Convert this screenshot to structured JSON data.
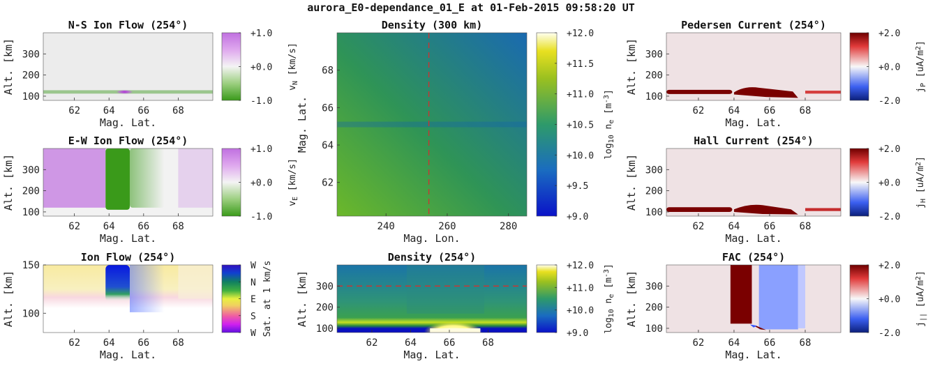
{
  "main_title": "aurora_E0-dependance_01_E at 01-Feb-2015 09:58:20 UT",
  "colors": {
    "green": "#3a9a1a",
    "magenta": "#c070e0",
    "dark_red": "#7a0000",
    "blue": "#1040ff",
    "density_green": "#3a9a4a",
    "density_blue": "#1060b0",
    "dashed_line": "#d23030"
  },
  "chart_data": [
    {
      "id": "ns_ion_flow",
      "type": "heatmap",
      "title": "N-S Ion Flow (254°)",
      "xlabel": "Mag. Lat.",
      "ylabel": "Alt. [km]",
      "xlim": [
        60.2,
        70.0
      ],
      "ylim": [
        80,
        400
      ],
      "xticks": [
        62,
        64,
        66,
        68
      ],
      "xtick_labels": [
        "62",
        "64",
        "66",
        "68"
      ],
      "yticks": [
        100,
        200,
        300
      ],
      "ytick_labels": [
        "100",
        "200",
        "300"
      ],
      "colorbar": {
        "label": "v",
        "sub": "N",
        "unit": " [km/s]",
        "ticks": [
          "+1.0",
          "+0.0",
          "-1.0"
        ],
        "colormap": "green-white-magenta"
      },
      "features": [
        {
          "kind": "band",
          "x": [
            60.2,
            70.0
          ],
          "y": [
            112,
            128
          ],
          "color": "green",
          "opacity": 0.45
        },
        {
          "kind": "blob",
          "x": 64.9,
          "y": 120,
          "rx": 0.5,
          "ry": 10,
          "color": "magenta"
        }
      ]
    },
    {
      "id": "ew_ion_flow",
      "type": "heatmap",
      "title": "E-W Ion Flow (254°)",
      "xlabel": "Mag. Lat.",
      "ylabel": "Alt. [km]",
      "xlim": [
        60.2,
        70.0
      ],
      "ylim": [
        80,
        400
      ],
      "xticks": [
        62,
        64,
        66,
        68
      ],
      "xtick_labels": [
        "62",
        "64",
        "66",
        "68"
      ],
      "yticks": [
        100,
        200,
        300
      ],
      "ytick_labels": [
        "100",
        "200",
        "300"
      ],
      "colorbar": {
        "label": "v",
        "sub": "E",
        "unit": " [km/s]",
        "ticks": [
          "+1.0",
          "+0.0",
          "-1.0"
        ],
        "colormap": "green-white-magenta"
      },
      "features": [
        {
          "kind": "rect",
          "x": [
            60.2,
            63.8
          ],
          "y": [
            120,
            400
          ],
          "color": "magenta",
          "opacity": 0.7
        },
        {
          "kind": "rect",
          "x": [
            63.8,
            65.2
          ],
          "y": [
            110,
            400
          ],
          "color": "green",
          "opacity": 1.0
        },
        {
          "kind": "fade",
          "x": [
            65.2,
            67.2
          ],
          "y": [
            120,
            400
          ],
          "color": "green",
          "opacity": 0.35
        },
        {
          "kind": "rect",
          "x": [
            68.0,
            70.0
          ],
          "y": [
            120,
            400
          ],
          "color": "magenta",
          "opacity": 0.25
        }
      ]
    },
    {
      "id": "ion_flow",
      "type": "heatmap",
      "title": "Ion Flow (254°)",
      "xlabel": "Mag. Lat.",
      "ylabel": "Alt. [km]",
      "xlim": [
        60.2,
        70.0
      ],
      "ylim": [
        80,
        150
      ],
      "xticks": [
        62,
        64,
        66,
        68
      ],
      "xtick_labels": [
        "62",
        "64",
        "66",
        "68"
      ],
      "yticks": [
        100,
        150
      ],
      "ytick_labels": [
        "100",
        "150"
      ],
      "colorbar": {
        "label": "Sat. at 1 km/s",
        "ticks": [
          "W",
          "N",
          "E",
          "S",
          "W"
        ],
        "colormap": "hsv-direction"
      },
      "features": [
        {
          "kind": "fade_vertical",
          "x": [
            60.2,
            70.0
          ],
          "y": [
            115,
            150
          ],
          "color": "yellow"
        },
        {
          "kind": "rect",
          "x": [
            63.8,
            65.2
          ],
          "y": [
            118,
            150
          ],
          "color": "blue",
          "opacity": 1.0
        }
      ]
    },
    {
      "id": "density_300km",
      "type": "heatmap",
      "title": "Density (300 km)",
      "xlabel": "Mag. Lon.",
      "ylabel": "Mag. Lat.",
      "xlim": [
        224,
        286
      ],
      "ylim": [
        60.2,
        70.0
      ],
      "xticks": [
        240,
        260,
        280
      ],
      "xtick_labels": [
        "240",
        "260",
        "280"
      ],
      "yticks": [
        62,
        64,
        66,
        68
      ],
      "ytick_labels": [
        "62",
        "64",
        "66",
        "68"
      ],
      "colorbar": {
        "label": "log",
        "sub": "10",
        "mid": " n",
        "sub2": "e",
        "unit": " [m",
        "sup": "-3",
        "end": "]",
        "ticks": [
          "+12.0",
          "+11.5",
          "+11.0",
          "+10.5",
          "+10.0",
          "+9.5",
          "+9.0"
        ],
        "colormap": "blue-green-yellow"
      },
      "reference_line": {
        "orientation": "vertical",
        "value": 254
      },
      "features": [
        {
          "kind": "band_h",
          "y": 65.1,
          "color": "density_blue"
        }
      ]
    },
    {
      "id": "density_254",
      "type": "heatmap",
      "title": "Density (254°)",
      "xlabel": "Mag. Lat.",
      "ylabel": "Alt. [km]",
      "xlim": [
        60.2,
        70.0
      ],
      "ylim": [
        80,
        400
      ],
      "xticks": [
        62,
        64,
        66,
        68
      ],
      "xtick_labels": [
        "62",
        "64",
        "66",
        "68"
      ],
      "yticks": [
        100,
        200,
        300
      ],
      "ytick_labels": [
        "100",
        "200",
        "300"
      ],
      "colorbar": {
        "label": "log",
        "sub": "10",
        "mid": " n",
        "sub2": "e",
        "unit": " [m",
        "sup": "-3",
        "end": "]",
        "ticks": [
          "+12.0",
          "+11.0",
          "+10.0",
          "+9.0"
        ],
        "colormap": "blue-green-yellow"
      },
      "reference_line": {
        "orientation": "horizontal",
        "value": 300
      }
    },
    {
      "id": "pedersen_current",
      "type": "heatmap",
      "title": "Pedersen Current (254°)",
      "xlabel": "Mag. Lat.",
      "ylabel": "Alt. [km]",
      "xlim": [
        60.2,
        70.0
      ],
      "ylim": [
        80,
        400
      ],
      "xticks": [
        62,
        64,
        66,
        68
      ],
      "xtick_labels": [
        "62",
        "64",
        "66",
        "68"
      ],
      "yticks": [
        100,
        200,
        300
      ],
      "ytick_labels": [
        "100",
        "200",
        "300"
      ],
      "colorbar": {
        "label": "j",
        "sub": "P",
        "unit": " [uA/m",
        "sup": "2",
        "end": "]",
        "ticks": [
          "+2.0",
          "+0.0",
          "-2.0"
        ],
        "colormap": "blue-white-red"
      }
    },
    {
      "id": "hall_current",
      "type": "heatmap",
      "title": "Hall Current (254°)",
      "xlabel": "Mag. Lat.",
      "ylabel": "Alt. [km]",
      "xlim": [
        60.2,
        70.0
      ],
      "ylim": [
        80,
        400
      ],
      "xticks": [
        62,
        64,
        66,
        68
      ],
      "xtick_labels": [
        "62",
        "64",
        "66",
        "68"
      ],
      "yticks": [
        100,
        200,
        300
      ],
      "ytick_labels": [
        "100",
        "200",
        "300"
      ],
      "colorbar": {
        "label": "j",
        "sub": "H",
        "unit": " [uA/m",
        "sup": "2",
        "end": "]",
        "ticks": [
          "+2.0",
          "+0.0",
          "-2.0"
        ],
        "colormap": "blue-white-red"
      }
    },
    {
      "id": "fac",
      "type": "heatmap",
      "title": "FAC (254°)",
      "xlabel": "Mag. Lat.",
      "ylabel": "Alt. [km]",
      "xlim": [
        60.2,
        70.0
      ],
      "ylim": [
        80,
        400
      ],
      "xticks": [
        62,
        64,
        66,
        68
      ],
      "xtick_labels": [
        "62",
        "64",
        "66",
        "68"
      ],
      "yticks": [
        100,
        200,
        300
      ],
      "ytick_labels": [
        "100",
        "200",
        "300"
      ],
      "colorbar": {
        "label": "j",
        "sub": "||",
        "unit": " [uA/m",
        "sup": "2",
        "end": "]",
        "ticks": [
          "+2.0",
          "+0.0",
          "-2.0"
        ],
        "colormap": "blue-white-red"
      }
    }
  ]
}
